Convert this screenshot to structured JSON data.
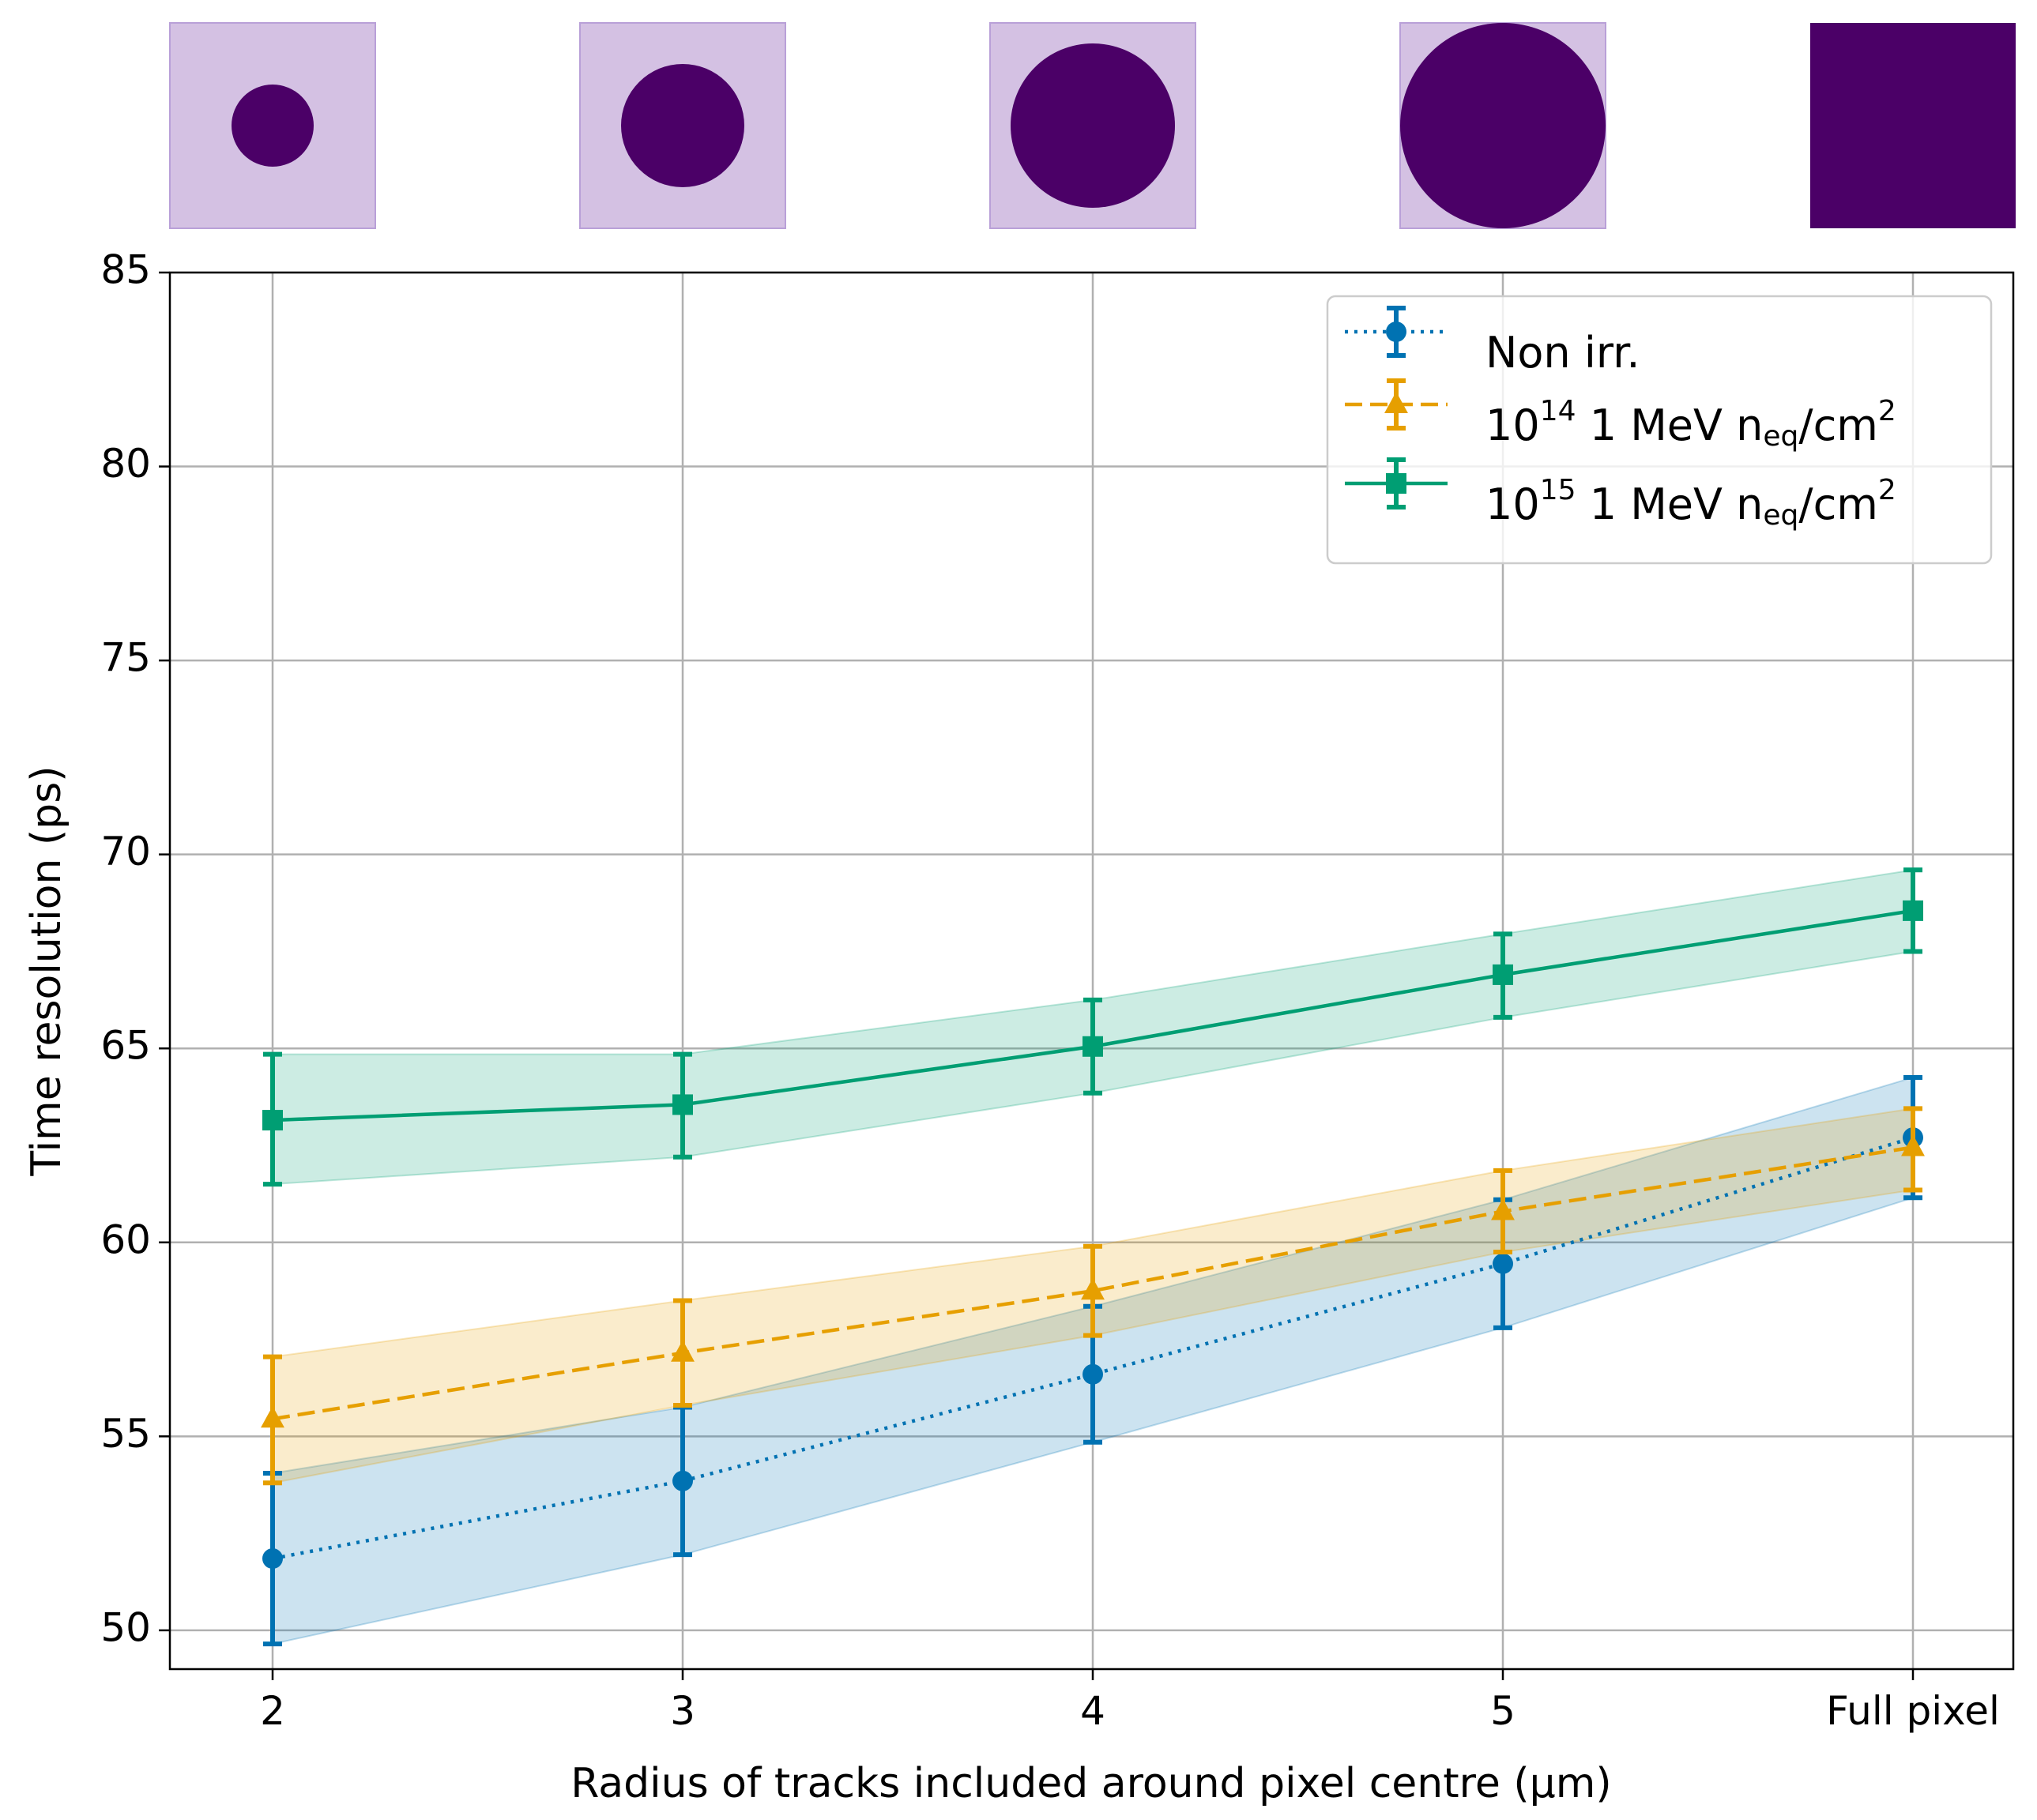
{
  "chart_data": {
    "type": "line",
    "title": "",
    "xlabel": "Radius of tracks included around pixel centre (µm)",
    "ylabel": "Time resolution (ps)",
    "categories": [
      "2",
      "3",
      "4",
      "5",
      "Full pixel"
    ],
    "ylim": [
      49,
      85
    ],
    "yticks": [
      "50",
      "55",
      "60",
      "65",
      "70",
      "75",
      "80",
      "85"
    ],
    "grid": true,
    "legend_position": "top-right",
    "series": [
      {
        "name": "Non irr.",
        "legend_base": "Non irr.",
        "color": "#0072b2",
        "marker": "circle",
        "linestyle": "dotted",
        "values": [
          51.85,
          53.85,
          56.6,
          59.45,
          62.7
        ],
        "err_low": [
          49.65,
          51.95,
          54.85,
          57.8,
          61.15
        ],
        "err_high": [
          54.05,
          55.75,
          58.35,
          61.1,
          64.25
        ]
      },
      {
        "name": "10^14 1 MeV n_eq/cm^2",
        "legend_base": "10",
        "legend_exp": "14",
        "legend_mid": " 1 MeV n",
        "legend_sub": "eq",
        "legend_unit": "/cm",
        "legend_unit_exp": "2",
        "color": "#e69f00",
        "marker": "triangle",
        "linestyle": "dashed",
        "values": [
          55.45,
          57.15,
          58.75,
          60.8,
          62.45
        ],
        "err_low": [
          53.8,
          55.8,
          57.6,
          59.75,
          61.35
        ],
        "err_high": [
          57.05,
          58.5,
          59.9,
          61.85,
          63.45
        ]
      },
      {
        "name": "10^15 1 MeV n_eq/cm^2",
        "legend_base": "10",
        "legend_exp": "15",
        "legend_mid": " 1 MeV n",
        "legend_sub": "eq",
        "legend_unit": "/cm",
        "legend_unit_exp": "2",
        "color": "#009e73",
        "marker": "square",
        "linestyle": "solid",
        "values": [
          63.15,
          63.55,
          65.05,
          66.9,
          68.55
        ],
        "err_low": [
          61.5,
          62.2,
          63.85,
          65.8,
          67.5
        ],
        "err_high": [
          64.85,
          64.85,
          66.25,
          67.95,
          69.6
        ]
      }
    ],
    "pixel_icons": {
      "radius_fractions": [
        0.4,
        0.6,
        0.8,
        1.0,
        1.0
      ],
      "full_square": [
        false,
        false,
        false,
        false,
        true
      ],
      "fill_color": "#4b0067",
      "background_color": "#d4c1e3",
      "border_color": "#b9a0d8"
    }
  }
}
